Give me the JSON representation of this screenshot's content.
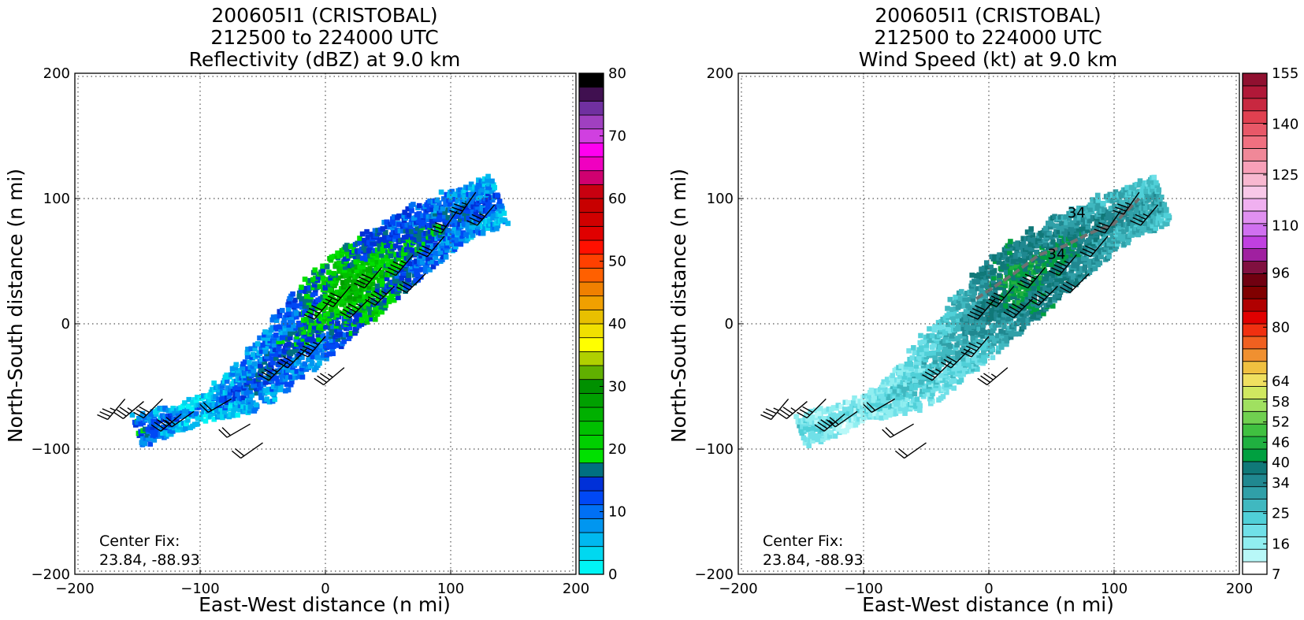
{
  "colors": {
    "refl_bins": [
      "#00f5f5",
      "#00d8f0",
      "#00b8f0",
      "#0096f0",
      "#0070f5",
      "#0048f5",
      "#0030d8",
      "#007080",
      "#00e000",
      "#00d000",
      "#00c000",
      "#00b000",
      "#00a000",
      "#009000",
      "#60b000",
      "#b0d000",
      "#ffff00",
      "#f0e000",
      "#e8c000",
      "#f0a000",
      "#f08000",
      "#ff6000",
      "#ff4000",
      "#ff1000",
      "#e00000",
      "#d00000",
      "#c80000",
      "#c80010",
      "#d00070",
      "#f000c0",
      "#ff00f0",
      "#d040e0",
      "#a040c0",
      "#7030a0",
      "#401050",
      "#000000"
    ],
    "wind_bins": [
      "#ffffff",
      "#b8f8f8",
      "#90eef0",
      "#70e0e8",
      "#50d0d8",
      "#40b8c0",
      "#30a0a8",
      "#208890",
      "#107878",
      "#00a040",
      "#20b040",
      "#40c040",
      "#70d050",
      "#a0e060",
      "#d0e860",
      "#f0e060",
      "#f0c040",
      "#f09030",
      "#f06020",
      "#f03010",
      "#e00000",
      "#b00000",
      "#800000",
      "#700010",
      "#801040",
      "#a020a0",
      "#c040e0",
      "#d070f0",
      "#e090f0",
      "#f0b0f0",
      "#f8c8e8",
      "#f8b8d0",
      "#f8a0b8",
      "#f08898",
      "#f07080",
      "#e85868",
      "#e04050",
      "#c82840",
      "#b01838",
      "#901030"
    ],
    "grid": "#555555",
    "frame": "#000000"
  },
  "charts": [
    {
      "title_lines": [
        "200605I1 (CRISTOBAL)",
        "212500 to 224000 UTC",
        "Reflectivity (dBZ) at 9.0 km"
      ],
      "xlabel": "East-West distance (n mi)",
      "ylabel": "North-South distance (n mi)",
      "ticks": [
        "−200",
        "−100",
        "0",
        "100",
        "200"
      ],
      "colorbar_ticks": [
        "0",
        "10",
        "20",
        "30",
        "40",
        "50",
        "60",
        "70",
        "80"
      ],
      "center_fix_label": "Center Fix:",
      "center_fix_coords": "23.84, -88.93"
    },
    {
      "title_lines": [
        "200605I1 (CRISTOBAL)",
        "212500 to 224000 UTC",
        "Wind Speed (kt) at 9.0 km"
      ],
      "xlabel": "East-West distance (n mi)",
      "ylabel": "North-South distance (n mi)",
      "ticks": [
        "−200",
        "−100",
        "0",
        "100",
        "200"
      ],
      "colorbar_ticks": [
        "7",
        "16",
        "25",
        "34",
        "40",
        "46",
        "52",
        "58",
        "64",
        "80",
        "96",
        "110",
        "125",
        "140",
        "155"
      ],
      "center_fix_label": "Center Fix:",
      "center_fix_coords": "23.84, -88.93",
      "contour_labels": [
        "34",
        "34"
      ]
    }
  ],
  "chart_data": [
    {
      "type": "heatmap",
      "title": "200605I1 (CRISTOBAL) 212500 to 224000 UTC Reflectivity (dBZ) at 9.0 km",
      "xlabel": "East-West distance (n mi)",
      "ylabel": "North-South distance (n mi)",
      "xlim": [
        -200,
        200
      ],
      "ylim": [
        -200,
        200
      ],
      "grid": true,
      "colorbar": {
        "label": "dBZ",
        "min": 0,
        "max": 80,
        "ticks": [
          0,
          10,
          20,
          30,
          40,
          50,
          60,
          70,
          80
        ]
      },
      "echo_swath": {
        "axis_points": [
          [
            -150,
            -85
          ],
          [
            -100,
            -68
          ],
          [
            -60,
            -50
          ],
          [
            -20,
            -10
          ],
          [
            20,
            30
          ],
          [
            60,
            60
          ],
          [
            100,
            85
          ],
          [
            140,
            100
          ]
        ],
        "half_width": [
          12,
          8,
          18,
          25,
          30,
          25,
          20,
          18
        ],
        "values": [
          12,
          5,
          10,
          12,
          22,
          14,
          11,
          8
        ]
      },
      "wind_barbs": [
        {
          "x": -160,
          "y": -60,
          "dir": 220,
          "speed": 25
        },
        {
          "x": -145,
          "y": -62,
          "dir": 230,
          "speed": 25
        },
        {
          "x": -130,
          "y": -60,
          "dir": 225,
          "speed": 30
        },
        {
          "x": -115,
          "y": -72,
          "dir": 230,
          "speed": 25
        },
        {
          "x": -105,
          "y": -70,
          "dir": 235,
          "speed": 20
        },
        {
          "x": -75,
          "y": -60,
          "dir": 240,
          "speed": 20
        },
        {
          "x": -60,
          "y": -80,
          "dir": 240,
          "speed": 20
        },
        {
          "x": -50,
          "y": -95,
          "dir": 235,
          "speed": 20
        },
        {
          "x": -30,
          "y": -30,
          "dir": 225,
          "speed": 25
        },
        {
          "x": -15,
          "y": -20,
          "dir": 225,
          "speed": 30
        },
        {
          "x": 0,
          "y": -10,
          "dir": 220,
          "speed": 35
        },
        {
          "x": 15,
          "y": -35,
          "dir": 230,
          "speed": 25
        },
        {
          "x": 5,
          "y": 20,
          "dir": 220,
          "speed": 40
        },
        {
          "x": 20,
          "y": 30,
          "dir": 220,
          "speed": 40
        },
        {
          "x": 35,
          "y": 20,
          "dir": 225,
          "speed": 35
        },
        {
          "x": 45,
          "y": 45,
          "dir": 220,
          "speed": 40
        },
        {
          "x": 55,
          "y": 30,
          "dir": 225,
          "speed": 35
        },
        {
          "x": 70,
          "y": 55,
          "dir": 220,
          "speed": 35
        },
        {
          "x": 80,
          "y": 40,
          "dir": 225,
          "speed": 30
        },
        {
          "x": 95,
          "y": 70,
          "dir": 220,
          "speed": 30
        },
        {
          "x": 105,
          "y": 90,
          "dir": 215,
          "speed": 30
        },
        {
          "x": 120,
          "y": 105,
          "dir": 215,
          "speed": 25
        },
        {
          "x": 135,
          "y": 95,
          "dir": 220,
          "speed": 25
        }
      ]
    },
    {
      "type": "heatmap",
      "title": "200605I1 (CRISTOBAL) 212500 to 224000 UTC Wind Speed (kt) at 9.0 km",
      "xlabel": "East-West distance (n mi)",
      "ylabel": "North-South distance (n mi)",
      "xlim": [
        -200,
        200
      ],
      "ylim": [
        -200,
        200
      ],
      "grid": true,
      "colorbar": {
        "label": "kt",
        "min": 7,
        "max": 155,
        "ticks": [
          7,
          16,
          25,
          34,
          40,
          46,
          52,
          58,
          64,
          80,
          96,
          110,
          125,
          140,
          155
        ]
      },
      "echo_swath": {
        "axis_points": [
          [
            -150,
            -85
          ],
          [
            -100,
            -68
          ],
          [
            -60,
            -50
          ],
          [
            -20,
            -10
          ],
          [
            20,
            30
          ],
          [
            60,
            60
          ],
          [
            100,
            85
          ],
          [
            140,
            100
          ]
        ],
        "half_width": [
          12,
          8,
          18,
          25,
          30,
          25,
          20,
          18
        ],
        "values": [
          20,
          18,
          22,
          26,
          40,
          36,
          30,
          27
        ]
      },
      "contour_34kt": [
        [
          -10,
          20
        ],
        [
          5,
          30
        ],
        [
          20,
          40
        ],
        [
          40,
          55
        ],
        [
          60,
          62
        ],
        [
          80,
          72
        ],
        [
          100,
          80
        ],
        [
          120,
          100
        ]
      ],
      "wind_barbs": [
        {
          "x": -160,
          "y": -60,
          "dir": 220,
          "speed": 25
        },
        {
          "x": -145,
          "y": -62,
          "dir": 230,
          "speed": 25
        },
        {
          "x": -130,
          "y": -60,
          "dir": 225,
          "speed": 30
        },
        {
          "x": -115,
          "y": -72,
          "dir": 230,
          "speed": 25
        },
        {
          "x": -105,
          "y": -70,
          "dir": 235,
          "speed": 20
        },
        {
          "x": -75,
          "y": -60,
          "dir": 240,
          "speed": 20
        },
        {
          "x": -60,
          "y": -80,
          "dir": 240,
          "speed": 20
        },
        {
          "x": -50,
          "y": -95,
          "dir": 235,
          "speed": 20
        },
        {
          "x": -30,
          "y": -30,
          "dir": 225,
          "speed": 25
        },
        {
          "x": -15,
          "y": -20,
          "dir": 225,
          "speed": 30
        },
        {
          "x": 0,
          "y": -10,
          "dir": 220,
          "speed": 35
        },
        {
          "x": 15,
          "y": -35,
          "dir": 230,
          "speed": 25
        },
        {
          "x": 5,
          "y": 20,
          "dir": 220,
          "speed": 40
        },
        {
          "x": 20,
          "y": 30,
          "dir": 220,
          "speed": 40
        },
        {
          "x": 35,
          "y": 20,
          "dir": 225,
          "speed": 35
        },
        {
          "x": 45,
          "y": 45,
          "dir": 220,
          "speed": 40
        },
        {
          "x": 55,
          "y": 30,
          "dir": 225,
          "speed": 35
        },
        {
          "x": 70,
          "y": 55,
          "dir": 220,
          "speed": 35
        },
        {
          "x": 80,
          "y": 40,
          "dir": 225,
          "speed": 30
        },
        {
          "x": 95,
          "y": 70,
          "dir": 220,
          "speed": 30
        },
        {
          "x": 105,
          "y": 90,
          "dir": 215,
          "speed": 30
        },
        {
          "x": 120,
          "y": 105,
          "dir": 215,
          "speed": 25
        },
        {
          "x": 135,
          "y": 95,
          "dir": 220,
          "speed": 25
        }
      ]
    }
  ]
}
